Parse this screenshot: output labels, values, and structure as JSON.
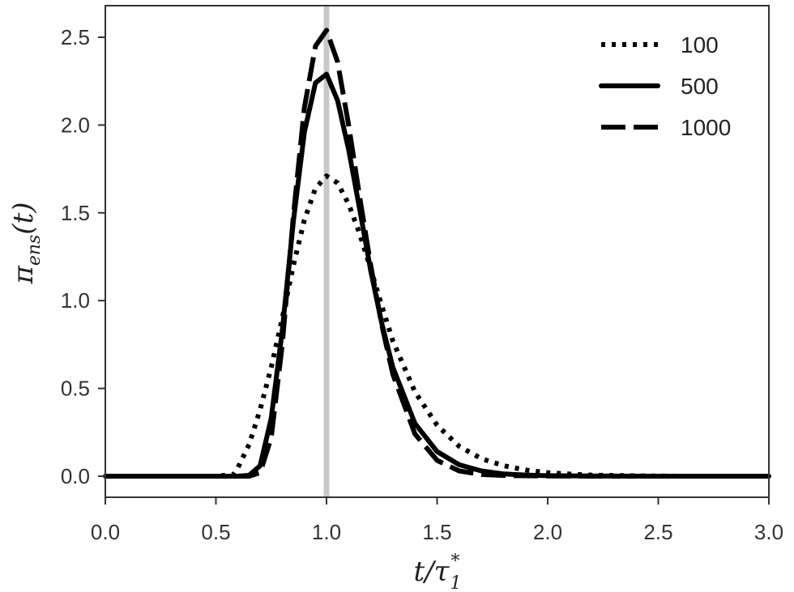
{
  "chart_data": {
    "type": "line",
    "title": "",
    "xlabel": {
      "base": "t/τ",
      "sub": "1",
      "sup": "*"
    },
    "ylabel": {
      "base": "π",
      "sub": "ens",
      "suffix": "(t)"
    },
    "xlim": [
      0.0,
      3.0
    ],
    "ylim": [
      -0.12,
      2.68
    ],
    "xticks": [
      "0.0",
      "0.5",
      "1.0",
      "1.5",
      "2.0",
      "2.5",
      "3.0"
    ],
    "yticks": [
      "0.0",
      "0.5",
      "1.0",
      "1.5",
      "2.0",
      "2.5"
    ],
    "grid": false,
    "legend_position": "top-right",
    "reference_line": {
      "x": 1.0,
      "color": "#c8c8c8"
    },
    "series": [
      {
        "name": "100",
        "style": "dotted",
        "color": "#000000",
        "x": [
          0.0,
          0.5,
          0.58,
          0.6,
          0.65,
          0.7,
          0.75,
          0.8,
          0.85,
          0.9,
          0.95,
          1.0,
          1.05,
          1.1,
          1.15,
          1.2,
          1.25,
          1.3,
          1.4,
          1.5,
          1.6,
          1.7,
          1.8,
          1.9,
          2.0,
          2.1,
          2.2,
          2.4,
          2.6,
          3.0
        ],
        "y": [
          0.0,
          0.0,
          0.01,
          0.05,
          0.18,
          0.38,
          0.62,
          0.9,
          1.2,
          1.46,
          1.64,
          1.71,
          1.67,
          1.55,
          1.38,
          1.18,
          0.97,
          0.77,
          0.48,
          0.29,
          0.17,
          0.1,
          0.06,
          0.035,
          0.02,
          0.012,
          0.006,
          0.002,
          0.0,
          0.0
        ]
      },
      {
        "name": "500",
        "style": "solid",
        "color": "#000000",
        "x": [
          0.0,
          0.6,
          0.65,
          0.7,
          0.75,
          0.8,
          0.85,
          0.9,
          0.95,
          1.0,
          1.05,
          1.1,
          1.15,
          1.2,
          1.25,
          1.3,
          1.4,
          1.5,
          1.6,
          1.7,
          1.8,
          1.9,
          2.0,
          2.2,
          2.5,
          3.0
        ],
        "y": [
          0.0,
          0.0,
          0.005,
          0.06,
          0.33,
          0.83,
          1.45,
          1.96,
          2.24,
          2.29,
          2.14,
          1.86,
          1.52,
          1.17,
          0.87,
          0.62,
          0.3,
          0.14,
          0.065,
          0.03,
          0.013,
          0.006,
          0.003,
          0.001,
          0.0,
          0.0
        ]
      },
      {
        "name": "1000",
        "style": "dashed",
        "color": "#000000",
        "x": [
          0.0,
          0.65,
          0.7,
          0.75,
          0.8,
          0.85,
          0.9,
          0.95,
          1.0,
          1.05,
          1.1,
          1.15,
          1.2,
          1.25,
          1.3,
          1.4,
          1.5,
          1.6,
          1.7,
          1.8,
          1.9,
          2.0,
          2.2,
          2.5,
          3.0
        ],
        "y": [
          0.0,
          0.0,
          0.02,
          0.22,
          0.75,
          1.48,
          2.1,
          2.45,
          2.54,
          2.36,
          2.0,
          1.59,
          1.2,
          0.86,
          0.58,
          0.24,
          0.09,
          0.03,
          0.01,
          0.004,
          0.002,
          0.001,
          0.0,
          0.0,
          0.0
        ]
      }
    ]
  }
}
